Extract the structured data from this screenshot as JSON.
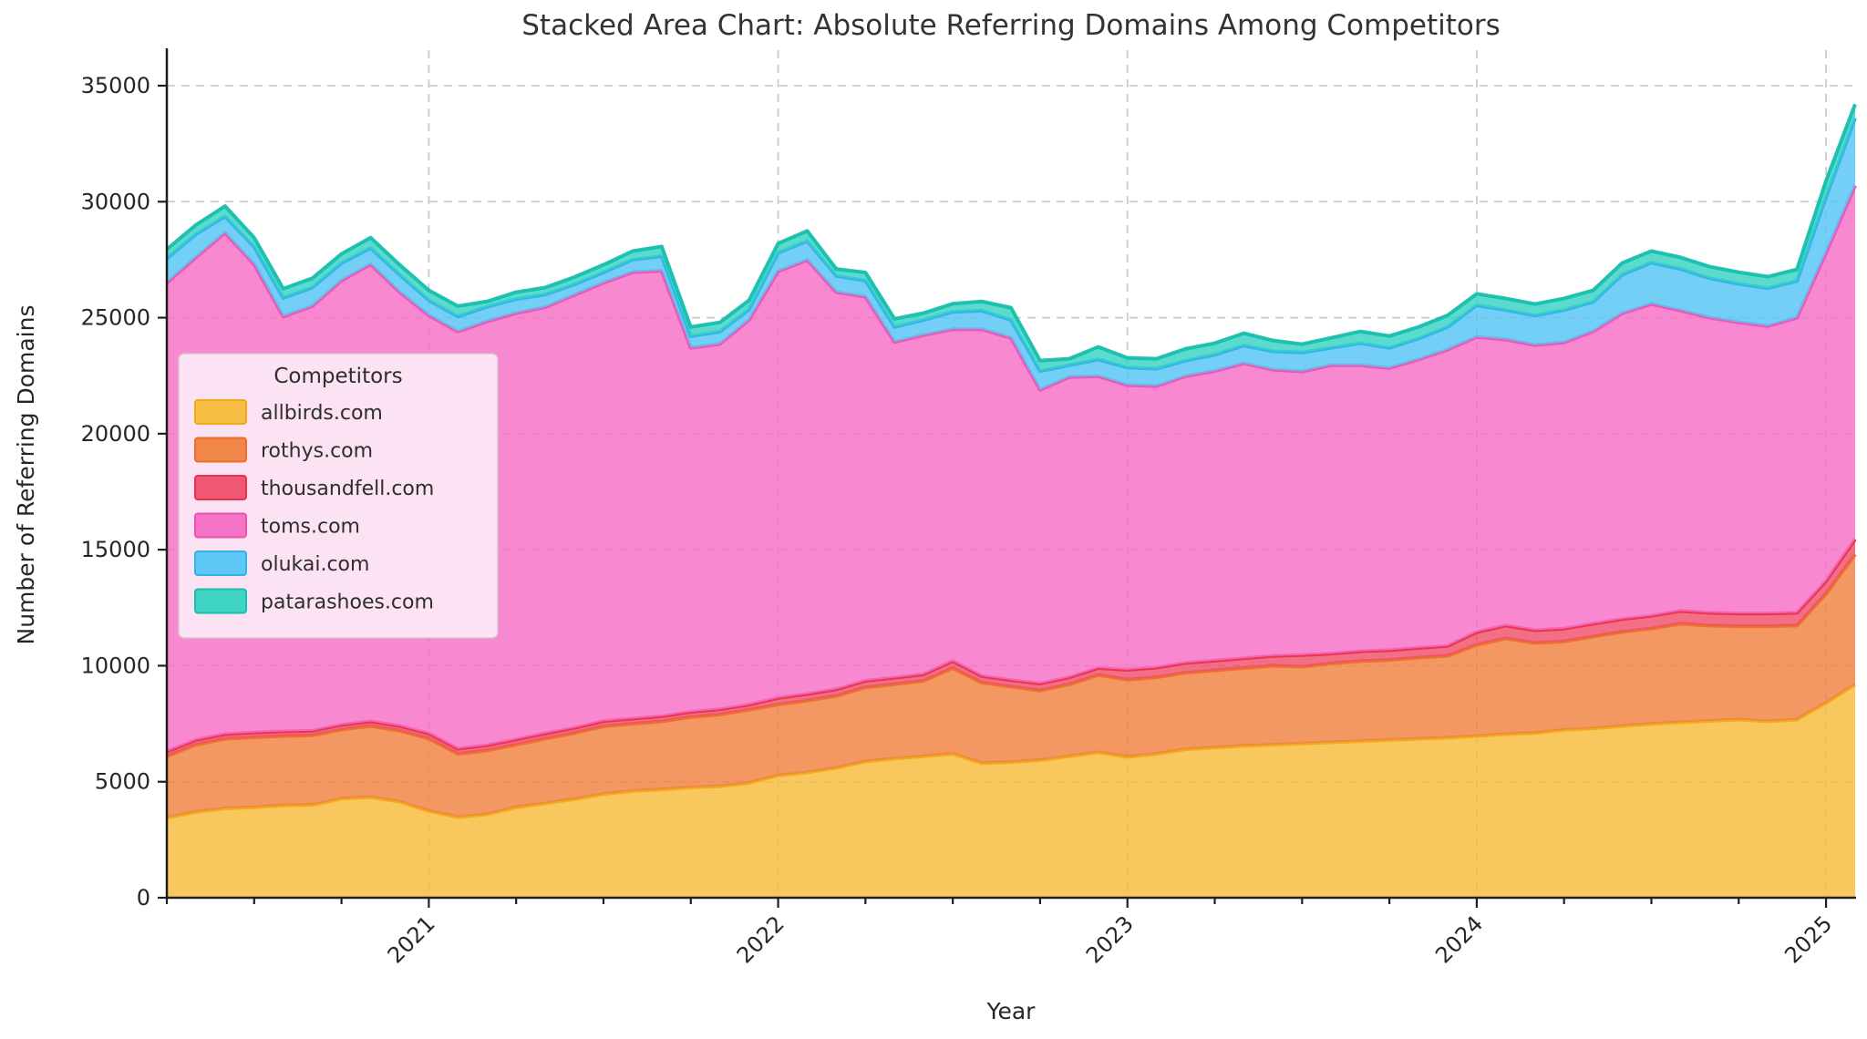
{
  "chart_data": {
    "type": "area",
    "stacked": true,
    "title": "Stacked Area Chart: Absolute Referring Domains Among Competitors",
    "xlabel": "Year",
    "ylabel": "Number of Referring Domains",
    "legend_title": "Competitors",
    "legend_position": "upper-left-inside",
    "grid": true,
    "ylim": [
      0,
      35000
    ],
    "y_ticks": [
      0,
      5000,
      10000,
      15000,
      20000,
      25000,
      30000,
      35000
    ],
    "x_tick_labels": [
      "2021",
      "2022",
      "2023",
      "2024",
      "2025"
    ],
    "x_tick_month_index": [
      9,
      21,
      33,
      45,
      57
    ],
    "x": [
      "2020-04",
      "2020-05",
      "2020-06",
      "2020-07",
      "2020-08",
      "2020-09",
      "2020-10",
      "2020-11",
      "2020-12",
      "2021-01",
      "2021-02",
      "2021-03",
      "2021-04",
      "2021-05",
      "2021-06",
      "2021-07",
      "2021-08",
      "2021-09",
      "2021-10",
      "2021-11",
      "2021-12",
      "2022-01",
      "2022-02",
      "2022-03",
      "2022-04",
      "2022-05",
      "2022-06",
      "2022-07",
      "2022-08",
      "2022-09",
      "2022-10",
      "2022-11",
      "2022-12",
      "2023-01",
      "2023-02",
      "2023-03",
      "2023-04",
      "2023-05",
      "2023-06",
      "2023-07",
      "2023-08",
      "2023-09",
      "2023-10",
      "2023-11",
      "2023-12",
      "2024-01",
      "2024-02",
      "2024-03",
      "2024-04",
      "2024-05",
      "2024-06",
      "2024-07",
      "2024-08",
      "2024-09",
      "2024-10",
      "2024-11",
      "2024-12",
      "2025-01",
      "2025-02"
    ],
    "series": [
      {
        "name": "allbirds.com",
        "color": "#F7BB3A",
        "line_color": "#F2A918",
        "values": [
          3450,
          3700,
          3850,
          3900,
          3980,
          4000,
          4270,
          4340,
          4140,
          3740,
          3480,
          3600,
          3900,
          4070,
          4250,
          4470,
          4600,
          4670,
          4760,
          4800,
          4950,
          5270,
          5400,
          5600,
          5870,
          6000,
          6100,
          6200,
          5800,
          5850,
          5930,
          6100,
          6270,
          6070,
          6200,
          6400,
          6470,
          6550,
          6600,
          6650,
          6700,
          6750,
          6800,
          6850,
          6900,
          6970,
          7050,
          7100,
          7240,
          7300,
          7400,
          7500,
          7560,
          7620,
          7680,
          7600,
          7680,
          8400,
          9200
        ]
      },
      {
        "name": "rothys.com",
        "color": "#F08140",
        "line_color": "#EC6F28",
        "values": [
          2650,
          2900,
          3000,
          3020,
          2990,
          3000,
          2980,
          3060,
          3060,
          3120,
          2720,
          2750,
          2700,
          2790,
          2850,
          2920,
          2900,
          2930,
          3030,
          3100,
          3150,
          3060,
          3100,
          3100,
          3200,
          3200,
          3250,
          3700,
          3470,
          3250,
          3000,
          3100,
          3330,
          3330,
          3300,
          3300,
          3330,
          3350,
          3400,
          3310,
          3400,
          3450,
          3450,
          3500,
          3530,
          3930,
          4130,
          3880,
          3810,
          3960,
          4060,
          4100,
          4250,
          4110,
          4020,
          4100,
          4050,
          4700,
          5600
        ]
      },
      {
        "name": "thousandfell.com",
        "color": "#EF4F6B",
        "line_color": "#E8314F",
        "values": [
          200,
          200,
          200,
          200,
          200,
          200,
          200,
          200,
          200,
          220,
          220,
          220,
          220,
          220,
          220,
          220,
          220,
          220,
          220,
          220,
          220,
          280,
          280,
          280,
          280,
          280,
          280,
          300,
          280,
          280,
          300,
          300,
          300,
          420,
          420,
          420,
          420,
          420,
          420,
          500,
          420,
          420,
          420,
          420,
          420,
          550,
          550,
          550,
          550,
          550,
          550,
          550,
          550,
          550,
          550,
          550,
          550,
          550,
          650
        ]
      },
      {
        "name": "toms.com",
        "color": "#F66EC4",
        "line_color": "#EF51B2",
        "values": [
          20200,
          20800,
          21600,
          20180,
          17880,
          18300,
          19150,
          19700,
          18700,
          18020,
          17980,
          18270,
          18380,
          18370,
          18660,
          18890,
          19240,
          19200,
          15690,
          15750,
          16580,
          18390,
          18700,
          17120,
          16550,
          14470,
          14620,
          14300,
          14950,
          14750,
          12660,
          12940,
          12580,
          12270,
          12130,
          12360,
          12480,
          12710,
          12340,
          12220,
          12430,
          12330,
          12160,
          12430,
          12770,
          12720,
          12330,
          12290,
          12330,
          12600,
          13180,
          13440,
          12950,
          12720,
          12550,
          12390,
          12720,
          14150,
          15250
        ]
      },
      {
        "name": "olukai.com",
        "color": "#55C5F4",
        "line_color": "#2FB3E8",
        "values": [
          1050,
          1000,
          710,
          750,
          800,
          800,
          750,
          700,
          750,
          650,
          650,
          630,
          600,
          550,
          450,
          450,
          540,
          630,
          500,
          530,
          450,
          800,
          820,
          700,
          700,
          650,
          650,
          750,
          800,
          770,
          810,
          510,
          720,
          760,
          750,
          670,
          700,
          770,
          790,
          820,
          750,
          950,
          870,
          900,
          980,
          1360,
          1270,
          1270,
          1400,
          1270,
          1670,
          1780,
          1790,
          1700,
          1660,
          1630,
          1580,
          2400,
          2900
        ]
      },
      {
        "name": "patarashoes.com",
        "color": "#36D3C2",
        "line_color": "#16BFAD",
        "values": [
          400,
          400,
          450,
          400,
          400,
          400,
          400,
          450,
          430,
          430,
          450,
          230,
          300,
          300,
          320,
          330,
          370,
          420,
          400,
          400,
          400,
          400,
          440,
          300,
          350,
          350,
          300,
          350,
          400,
          530,
          450,
          280,
          540,
          420,
          430,
          510,
          500,
          530,
          470,
          360,
          430,
          510,
          510,
          500,
          500,
          500,
          500,
          500,
          500,
          500,
          500,
          500,
          500,
          500,
          500,
          500,
          500,
          700,
          600
        ]
      }
    ],
    "style": {
      "grid_color": "#cbcbcb",
      "spine_color": "#1f1f1f",
      "tick_label_color": "#262626",
      "title_color": "#333333",
      "legend_bg": "#FCE9F7",
      "legend_border": "#d2c3ce",
      "legend_text_color": "#2e2e2e",
      "fill_opacity": 0.82
    }
  }
}
